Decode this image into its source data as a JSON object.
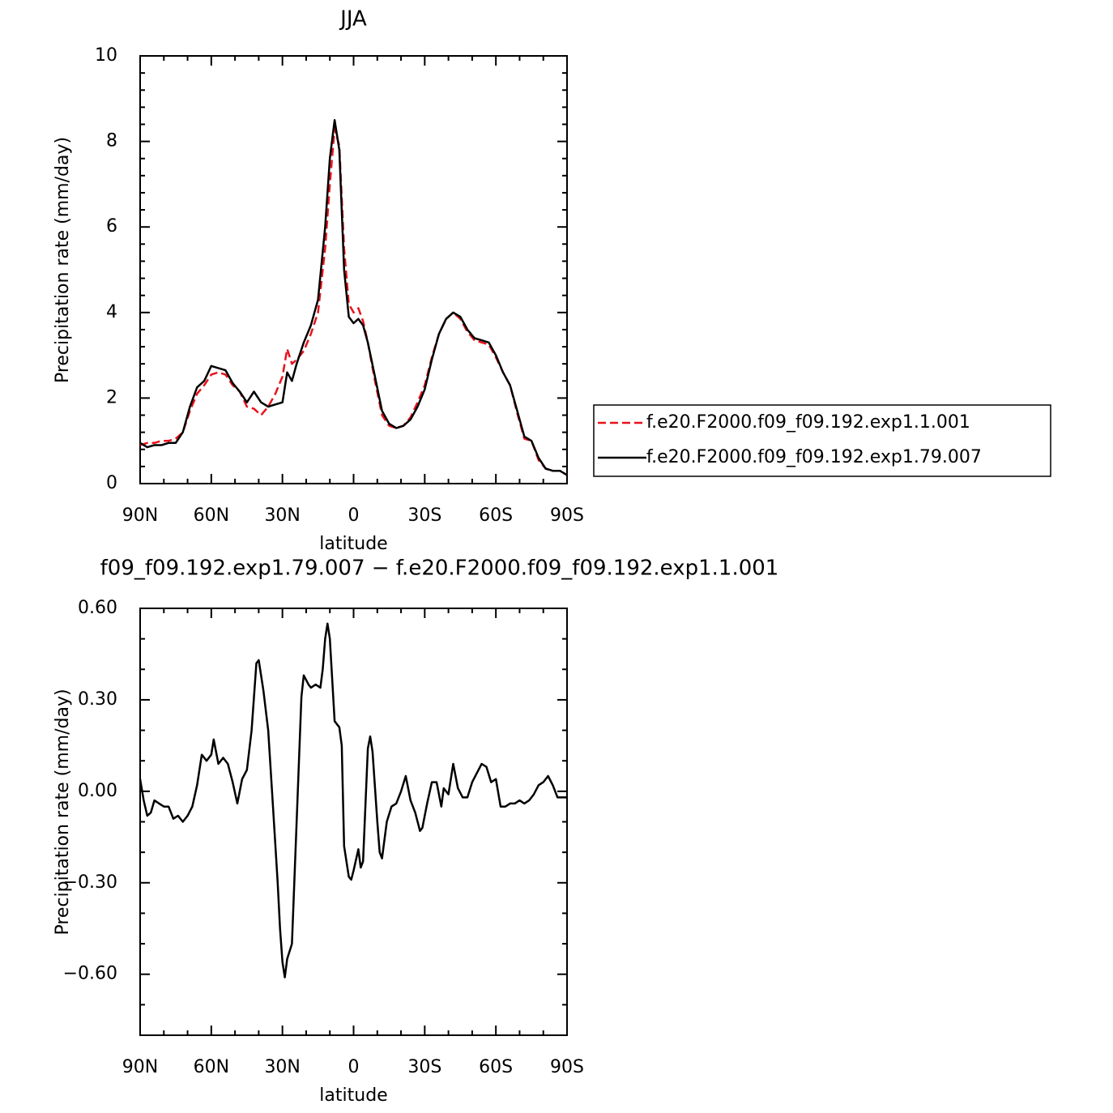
{
  "chart_data": [
    {
      "type": "line",
      "title": "JJA",
      "xlabel": "latitude",
      "ylabel": "Precipitation rate (mm/day)",
      "xlim": [
        90,
        -90
      ],
      "ylim": [
        0,
        10
      ],
      "xticks": [
        {
          "value": 90,
          "label": "90N"
        },
        {
          "value": 60,
          "label": "60N"
        },
        {
          "value": 30,
          "label": "30N"
        },
        {
          "value": 0,
          "label": "0"
        },
        {
          "value": -30,
          "label": "30S"
        },
        {
          "value": -60,
          "label": "60S"
        },
        {
          "value": -90,
          "label": "90S"
        }
      ],
      "yticks": [
        0,
        2,
        4,
        6,
        8,
        10
      ],
      "legend": "right",
      "x": [
        90,
        87,
        84,
        81,
        78,
        75,
        72,
        69,
        66,
        63,
        60,
        57,
        54,
        51,
        48,
        45,
        42,
        39,
        36,
        33,
        30,
        28,
        26,
        24,
        21,
        18,
        15,
        12,
        10,
        8,
        6,
        4,
        2,
        0,
        -2,
        -4,
        -6,
        -9,
        -12,
        -15,
        -18,
        -21,
        -24,
        -27,
        -30,
        -33,
        -36,
        -39,
        -42,
        -45,
        -48,
        -51,
        -54,
        -57,
        -60,
        -63,
        -66,
        -69,
        -72,
        -75,
        -78,
        -81,
        -84,
        -87,
        -90
      ],
      "series": [
        {
          "name": "f.e20.F2000.f09_f09.192.exp1.1.001",
          "color": "#e8121b",
          "linestyle": "dashed",
          "values": [
            0.9,
            0.95,
            0.95,
            1.0,
            1.0,
            1.05,
            1.2,
            1.7,
            2.1,
            2.3,
            2.55,
            2.6,
            2.55,
            2.3,
            2.15,
            1.8,
            1.75,
            1.6,
            1.8,
            2.1,
            2.5,
            3.15,
            2.8,
            2.9,
            3.1,
            3.5,
            4.0,
            5.5,
            7.0,
            8.3,
            7.9,
            5.5,
            4.2,
            4.0,
            4.1,
            3.8,
            3.3,
            2.4,
            1.6,
            1.35,
            1.3,
            1.35,
            1.55,
            1.9,
            2.3,
            2.95,
            3.5,
            3.85,
            4.0,
            3.85,
            3.55,
            3.35,
            3.3,
            3.25,
            2.95,
            2.6,
            2.3,
            1.65,
            1.05,
            1.0,
            0.55,
            0.35,
            0.3,
            0.3,
            0.2
          ]
        },
        {
          "name": "f.e20.F2000.f09_f09.192.exp1.79.007",
          "color": "#000000",
          "linestyle": "solid",
          "values": [
            0.95,
            0.85,
            0.9,
            0.9,
            0.95,
            0.95,
            1.2,
            1.8,
            2.25,
            2.4,
            2.75,
            2.7,
            2.65,
            2.35,
            2.15,
            1.9,
            2.15,
            1.9,
            1.8,
            1.85,
            1.9,
            2.6,
            2.4,
            2.8,
            3.3,
            3.7,
            4.3,
            6.0,
            7.6,
            8.5,
            7.8,
            5.0,
            3.9,
            3.75,
            3.85,
            3.7,
            3.3,
            2.5,
            1.7,
            1.4,
            1.3,
            1.35,
            1.5,
            1.8,
            2.2,
            2.9,
            3.5,
            3.85,
            4.0,
            3.9,
            3.6,
            3.4,
            3.35,
            3.3,
            3.0,
            2.6,
            2.3,
            1.7,
            1.1,
            1.0,
            0.6,
            0.35,
            0.3,
            0.3,
            0.2
          ]
        }
      ]
    },
    {
      "type": "line",
      "title": "f09_f09.192.exp1.79.007 − f.e20.F2000.f09_f09.192.exp1.1.001",
      "xlabel": "latitude",
      "ylabel": "Precipitation rate (mm/day)",
      "xlim": [
        90,
        -90
      ],
      "ylim": [
        -0.8,
        0.6
      ],
      "xticks": [
        {
          "value": 90,
          "label": "90N"
        },
        {
          "value": 60,
          "label": "60N"
        },
        {
          "value": 30,
          "label": "30N"
        },
        {
          "value": 0,
          "label": "0"
        },
        {
          "value": -30,
          "label": "30S"
        },
        {
          "value": -60,
          "label": "60S"
        },
        {
          "value": -90,
          "label": "90S"
        }
      ],
      "yticks": [
        {
          "value": 0.6,
          "label": "0.60"
        },
        {
          "value": 0.3,
          "label": "0.30"
        },
        {
          "value": 0,
          "label": "0.00"
        },
        {
          "value": -0.3,
          "label": "−0.30"
        },
        {
          "value": -0.6,
          "label": "−0.60"
        }
      ],
      "x": [
        90,
        88.5,
        87,
        85.5,
        84,
        82,
        80,
        78,
        76,
        74,
        72,
        70,
        68,
        66,
        64,
        62,
        60,
        59,
        57,
        55,
        53,
        51,
        49,
        47,
        45,
        43,
        41,
        40,
        38,
        36,
        34,
        32,
        31,
        30,
        29,
        28,
        26,
        24,
        22,
        21,
        19,
        18,
        16,
        14,
        13,
        12,
        11,
        10,
        8,
        6,
        5,
        4,
        2,
        1,
        0,
        -2,
        -3,
        -4,
        -6,
        -7,
        -8,
        -10,
        -11,
        -12,
        -14,
        -16,
        -18,
        -20,
        -22,
        -24,
        -26,
        -28,
        -29,
        -31,
        -33,
        -35,
        -37,
        -38,
        -40,
        -42,
        -44,
        -46,
        -48,
        -50,
        -52,
        -54,
        -56,
        -58,
        -60,
        -62,
        -64,
        -66,
        -68,
        -70,
        -72,
        -74,
        -76,
        -78,
        -80,
        -82,
        -84,
        -86,
        -88,
        -90
      ],
      "color": "#000000",
      "values": [
        0.04,
        -0.03,
        -0.08,
        -0.07,
        -0.03,
        -0.04,
        -0.05,
        -0.05,
        -0.09,
        -0.08,
        -0.1,
        -0.08,
        -0.05,
        0.02,
        0.12,
        0.1,
        0.12,
        0.17,
        0.09,
        0.11,
        0.09,
        0.03,
        -0.04,
        0.04,
        0.07,
        0.2,
        0.42,
        0.43,
        0.33,
        0.2,
        -0.05,
        -0.3,
        -0.45,
        -0.56,
        -0.61,
        -0.55,
        -0.5,
        -0.1,
        0.31,
        0.38,
        0.35,
        0.34,
        0.35,
        0.34,
        0.4,
        0.5,
        0.55,
        0.5,
        0.23,
        0.21,
        0.15,
        -0.18,
        -0.28,
        -0.29,
        -0.26,
        -0.19,
        -0.25,
        -0.23,
        0.14,
        0.18,
        0.13,
        -0.1,
        -0.2,
        -0.22,
        -0.1,
        -0.05,
        -0.04,
        0.0,
        0.05,
        -0.03,
        -0.07,
        -0.13,
        -0.12,
        -0.04,
        0.03,
        0.03,
        -0.05,
        0.01,
        -0.01,
        0.09,
        0.01,
        -0.02,
        -0.02,
        0.03,
        0.06,
        0.09,
        0.08,
        0.03,
        0.04,
        -0.05,
        -0.05,
        -0.04,
        -0.04,
        -0.03,
        -0.04,
        -0.03,
        -0.01,
        0.02,
        0.03,
        0.05,
        0.02,
        -0.02,
        -0.02,
        -0.02
      ]
    }
  ]
}
